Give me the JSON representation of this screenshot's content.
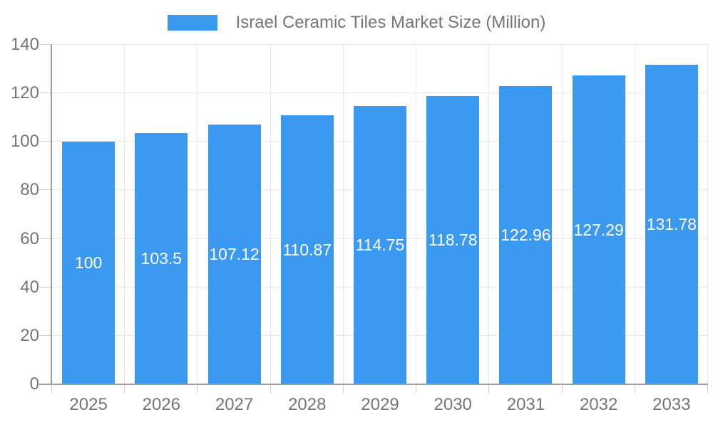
{
  "chart_data": {
    "type": "bar",
    "title": "Israel Ceramic Tiles Market Size (Million)",
    "categories": [
      "2025",
      "2026",
      "2027",
      "2028",
      "2029",
      "2030",
      "2031",
      "2032",
      "2033"
    ],
    "values": [
      100,
      103.5,
      107.12,
      110.87,
      114.75,
      118.78,
      122.96,
      127.29,
      131.78
    ],
    "value_labels": [
      "100",
      "103.5",
      "107.12",
      "110.87",
      "114.75",
      "118.78",
      "122.96",
      "127.29",
      "131.78"
    ],
    "xlabel": "",
    "ylabel": "",
    "ylim": [
      0,
      140
    ],
    "yticks": [
      0,
      20,
      40,
      60,
      80,
      100,
      120,
      140
    ],
    "grid": true,
    "legend_position": "top",
    "colors": {
      "bar": "#3b99f0",
      "grid_line": "#e8e8e8",
      "tick_mark": "#cdcdcd",
      "axis_line": "#999999",
      "axis_text": "#757575",
      "value_label_text": "#ffffff",
      "background": "#ffffff"
    }
  }
}
